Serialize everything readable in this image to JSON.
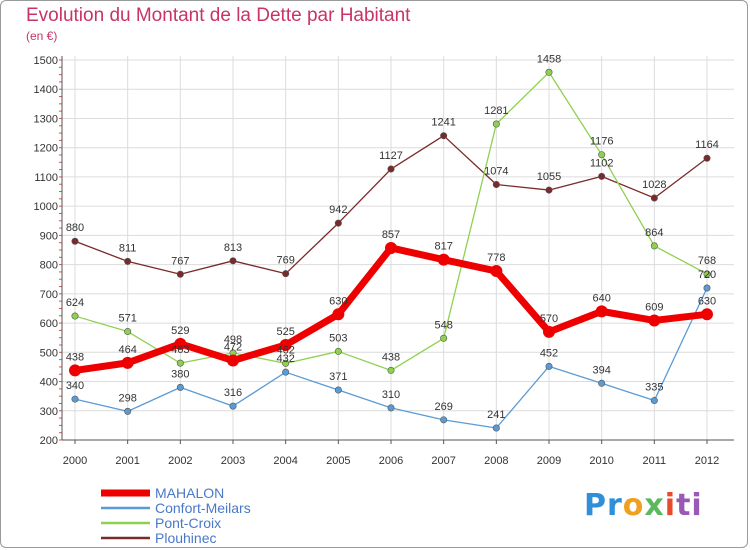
{
  "chart_data": {
    "type": "line",
    "title": "Evolution du Montant de la Dette par Habitant",
    "subtitle": "(en €)",
    "x": [
      "2000",
      "2001",
      "2002",
      "2003",
      "2004",
      "2005",
      "2006",
      "2007",
      "2008",
      "2009",
      "2010",
      "2011",
      "2012"
    ],
    "ylim": [
      200,
      1500
    ],
    "yticks": [
      200,
      300,
      400,
      500,
      600,
      700,
      800,
      900,
      1000,
      1100,
      1200,
      1300,
      1400,
      1500
    ],
    "grid": true,
    "legend_position": "bottom-left",
    "series": [
      {
        "name": "MAHALON",
        "color": "#ee0000",
        "values": [
          438,
          464,
          529,
          472,
          525,
          630,
          857,
          817,
          778,
          570,
          640,
          609,
          630
        ]
      },
      {
        "name": "Confort-Meilars",
        "color": "#5b9bd5",
        "values": [
          340,
          298,
          380,
          316,
          432,
          371,
          310,
          269,
          241,
          452,
          394,
          335,
          720
        ]
      },
      {
        "name": "Pont-Croix",
        "color": "#8fd14f",
        "values": [
          624,
          571,
          463,
          498,
          462,
          503,
          438,
          548,
          1281,
          1458,
          1176,
          864,
          768
        ]
      },
      {
        "name": "Plouhinec",
        "color": "#7a2a2a",
        "values": [
          880,
          811,
          767,
          813,
          769,
          942,
          1127,
          1241,
          1074,
          1055,
          1102,
          1028,
          1164
        ]
      }
    ]
  },
  "logo": {
    "parts": [
      "Pr",
      "o",
      "x",
      "i",
      "ti"
    ]
  }
}
